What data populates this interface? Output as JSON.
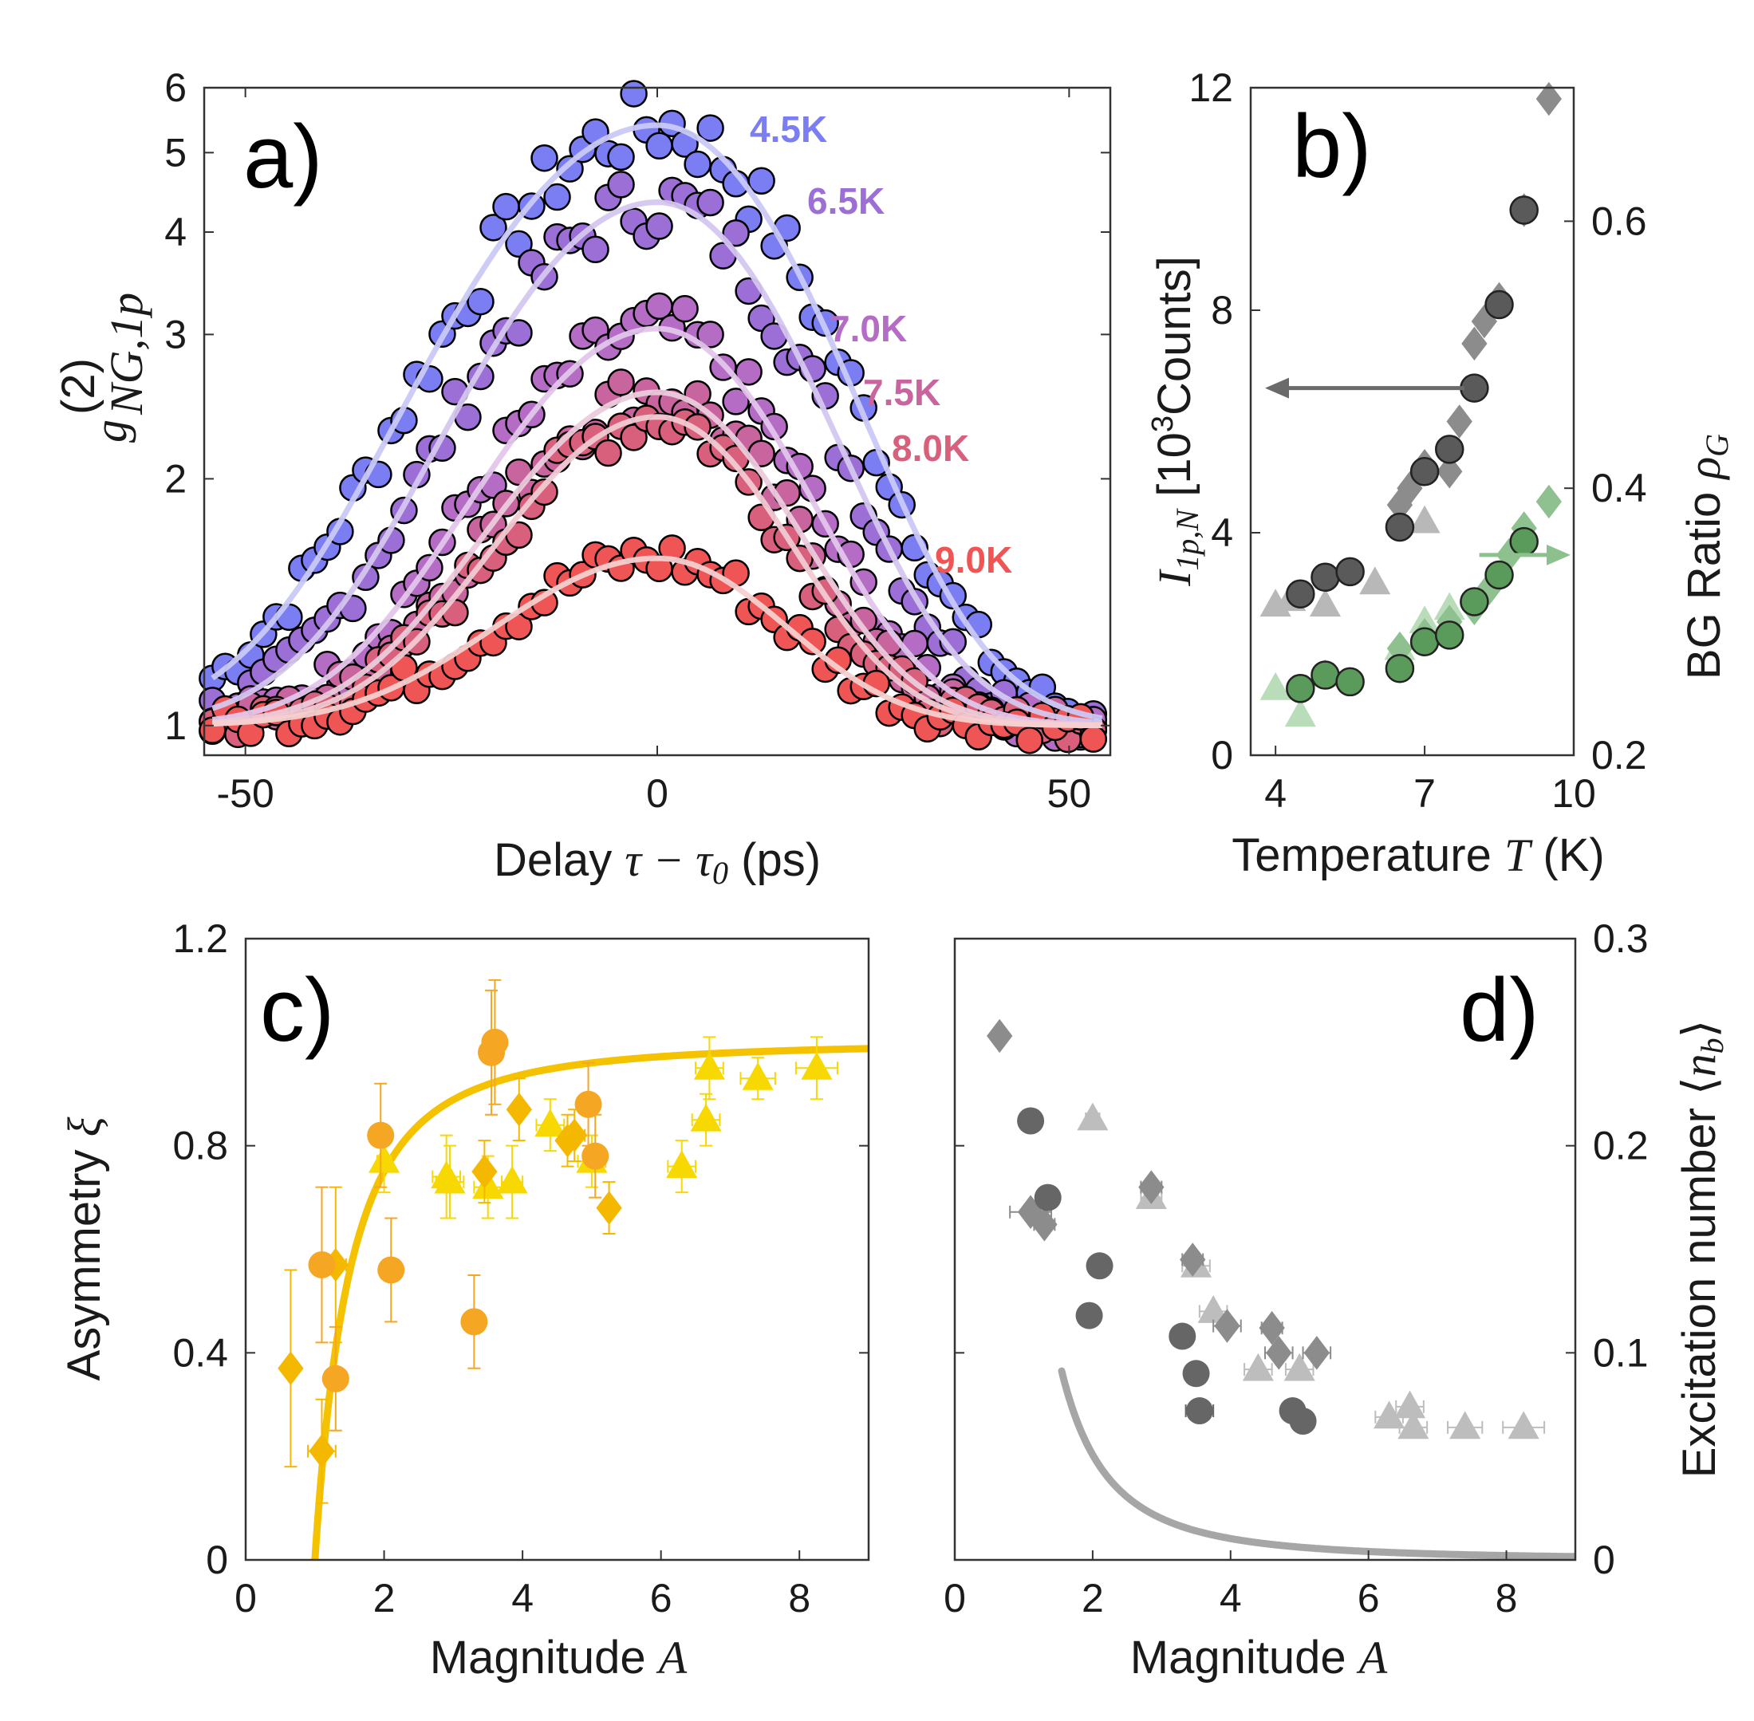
{
  "figure": {
    "panels": [
      "a)",
      "b)",
      "c)",
      "d)"
    ]
  },
  "chart_data": [
    {
      "panel": "a)",
      "type": "scatter",
      "xlabel": "Delay τ − τ0 (ps)",
      "ylabel": "g(2) NG,1p",
      "ylabel_main": "g",
      "ylabel_sup": "(2)",
      "ylabel_sub": "NG,1p",
      "xlabel_parts": [
        "Delay ",
        "τ − τ",
        "0",
        " (ps)"
      ],
      "yscale": "log",
      "xlim": [
        -55,
        55
      ],
      "ylim": [
        0.92,
        6
      ],
      "xticks": [
        -50,
        0,
        50
      ],
      "yticks": [
        1,
        2,
        3,
        4,
        5,
        6
      ],
      "fit_model": "gaussian: y = 1 + (peak - 1) * exp(-x^2 / (2 * sigma^2))",
      "series": [
        {
          "name": "4.5K",
          "color": "#7b7ef2",
          "fit_color": "#c9c9f7",
          "peak": 5.4,
          "sigma": 16.5,
          "asymmetry_left": 1.25
        },
        {
          "name": "6.5K",
          "color": "#9b6fd6",
          "fit_color": "#d4c7ef",
          "peak": 4.35,
          "sigma": 15.5,
          "asymmetry_left": 1.2
        },
        {
          "name": "7.0K",
          "color": "#b46cc4",
          "fit_color": "#e3c6ec",
          "peak": 3.05,
          "sigma": 14.5,
          "asymmetry_left": 1.2
        },
        {
          "name": "7.5K",
          "color": "#c8649e",
          "fit_color": "#eccbdc",
          "peak": 2.55,
          "sigma": 14.0,
          "asymmetry_left": 1.2
        },
        {
          "name": "8.0K",
          "color": "#d8607c",
          "fit_color": "#f1cad3",
          "peak": 2.38,
          "sigma": 13.5,
          "asymmetry_left": 1.2
        },
        {
          "name": "9.0K",
          "color": "#ef5555",
          "fit_color": "#f6d0d0",
          "peak": 1.6,
          "sigma": 14.0,
          "asymmetry_left": 1.25
        }
      ]
    },
    {
      "panel": "b)",
      "type": "scatter",
      "xlabel": "Temperature T (K)",
      "xlabel_parts": [
        "Temperature ",
        "T",
        " (K)"
      ],
      "ylabel_left": "I1p,N [10^3 Counts]",
      "ylabel_left_parts": [
        "I",
        "1p,N",
        " [10",
        "3",
        "Counts]"
      ],
      "ylabel_right": "BG Ratio ρG",
      "ylabel_right_parts": [
        "BG Ratio ",
        "ρ",
        "G"
      ],
      "xlim": [
        3.5,
        10
      ],
      "ylim_left": [
        0,
        12
      ],
      "ylim_right": [
        0.2,
        0.7
      ],
      "xticks": [
        4,
        7,
        10
      ],
      "yticks_left": [
        0,
        4,
        8,
        12
      ],
      "yticks_right": [
        0.2,
        0.4,
        0.6
      ],
      "series": [
        {
          "name": "counts circles",
          "axis": "left",
          "marker": "circle",
          "color": "#5a5a5a",
          "x": [
            4.5,
            5.0,
            5.5,
            6.5,
            7.0,
            7.5,
            8.0,
            8.5,
            9.0
          ],
          "y": [
            2.9,
            3.2,
            3.3,
            4.1,
            5.1,
            5.5,
            6.6,
            8.1,
            9.8
          ]
        },
        {
          "name": "counts diamonds",
          "axis": "left",
          "marker": "diamond",
          "color": "#8c8c8c",
          "x": [
            6.5,
            6.7,
            7.0,
            7.5,
            7.7,
            8.0,
            8.2,
            8.5,
            9.0,
            9.5
          ],
          "y": [
            4.5,
            4.8,
            5.2,
            5.1,
            6.0,
            7.4,
            7.8,
            8.2,
            9.8,
            11.8
          ]
        },
        {
          "name": "counts triangles",
          "axis": "left",
          "marker": "triangle",
          "color": "#b8b8b8",
          "x": [
            4.0,
            4.3,
            5.0,
            6.0,
            7.0
          ],
          "y": [
            2.7,
            2.8,
            2.7,
            3.1,
            4.2
          ]
        },
        {
          "name": "ratio circles",
          "axis": "right",
          "marker": "circle",
          "color": "#5a9a5a",
          "x": [
            4.5,
            5.0,
            5.5,
            6.5,
            7.0,
            7.5,
            8.0,
            8.5,
            9.0
          ],
          "y": [
            0.25,
            0.26,
            0.255,
            0.265,
            0.285,
            0.29,
            0.315,
            0.335,
            0.36
          ]
        },
        {
          "name": "ratio diamonds",
          "axis": "right",
          "marker": "diamond",
          "color": "#8fc08f",
          "x": [
            6.5,
            7.0,
            7.5,
            8.0,
            8.3,
            8.7,
            9.0,
            9.5
          ],
          "y": [
            0.28,
            0.29,
            0.3,
            0.31,
            0.325,
            0.35,
            0.37,
            0.39
          ]
        },
        {
          "name": "ratio triangles",
          "axis": "right",
          "marker": "triangle",
          "color": "#b9dcb9",
          "x": [
            4.0,
            4.5,
            5.0,
            6.5,
            7.0,
            7.5
          ],
          "y": [
            0.25,
            0.23,
            0.26,
            0.28,
            0.3,
            0.31
          ]
        }
      ],
      "arrows": [
        {
          "axis": "left",
          "direction": "left",
          "color": "#6a6a6a",
          "from_x": 7.8,
          "to_x": 3.5,
          "y": 6.6
        },
        {
          "axis": "right",
          "direction": "right",
          "color": "#8cc08c",
          "from_x": 8.1,
          "to_x": 10.0,
          "y": 0.35
        }
      ]
    },
    {
      "panel": "c)",
      "type": "scatter",
      "xlabel": "Magnitude A",
      "xlabel_parts": [
        "Magnitude ",
        "A"
      ],
      "ylabel": "Asymmetry ξ",
      "ylabel_parts": [
        "Asymmetry ",
        "ξ"
      ],
      "xlim": [
        0,
        9
      ],
      "ylim": [
        0,
        1.2
      ],
      "xticks": [
        0,
        2,
        4,
        6,
        8
      ],
      "yticks": [
        0,
        0.4,
        0.8,
        1.2
      ],
      "fit": {
        "color": "#f5c200",
        "model": "y = 1 - 1/A^2",
        "x_start": 1.0
      },
      "series": [
        {
          "name": "circles",
          "marker": "circle",
          "color": "#f5a623",
          "x": [
            1.1,
            1.3,
            1.95,
            2.1,
            3.3,
            3.55,
            3.6,
            4.95,
            5.05
          ],
          "y": [
            0.57,
            0.35,
            0.82,
            0.56,
            0.46,
            0.98,
            1.0,
            0.88,
            0.78
          ],
          "yerr": [
            0.15,
            0.1,
            0.1,
            0.1,
            0.09,
            0.12,
            0.12,
            0.08,
            0.08
          ],
          "xerr": [
            0.1,
            0.15,
            0.05,
            0.05,
            0.15,
            0.05,
            0.1,
            0.1,
            0.1
          ]
        },
        {
          "name": "diamonds",
          "marker": "diamond",
          "color": "#f5b800",
          "x": [
            0.65,
            1.1,
            1.3,
            3.45,
            3.95,
            4.65,
            4.75,
            5.25
          ],
          "y": [
            0.37,
            0.21,
            0.57,
            0.75,
            0.87,
            0.81,
            0.82,
            0.68
          ],
          "yerr": [
            0.19,
            0.1,
            0.15,
            0.06,
            0.06,
            0.05,
            0.05,
            0.05
          ],
          "xerr": [
            0.1,
            0.2,
            0.15,
            0.1,
            0.1,
            0.1,
            0.15,
            0.1
          ]
        },
        {
          "name": "triangles",
          "marker": "triangle",
          "color": "#f7d800",
          "x": [
            2.0,
            2.9,
            2.95,
            3.5,
            3.85,
            4.4,
            5.0,
            6.3,
            6.65,
            6.7,
            7.4,
            8.25
          ],
          "y": [
            0.77,
            0.74,
            0.73,
            0.72,
            0.73,
            0.84,
            0.77,
            0.76,
            0.85,
            0.95,
            0.93,
            0.95
          ],
          "yerr": [
            0.06,
            0.08,
            0.07,
            0.06,
            0.07,
            0.05,
            0.05,
            0.05,
            0.05,
            0.06,
            0.04,
            0.06
          ],
          "xerr": [
            0.1,
            0.2,
            0.2,
            0.2,
            0.15,
            0.2,
            0.2,
            0.2,
            0.2,
            0.2,
            0.25,
            0.3
          ]
        }
      ]
    },
    {
      "panel": "d)",
      "type": "scatter",
      "xlabel": "Magnitude A",
      "xlabel_parts": [
        "Magnitude ",
        "A"
      ],
      "ylabel": "Excitation number ⟨nb⟩",
      "ylabel_parts": [
        "Excitation number ⟨",
        "n",
        "b",
        "⟩"
      ],
      "xlim": [
        0,
        9
      ],
      "ylim": [
        0,
        0.3
      ],
      "xticks": [
        0,
        2,
        4,
        6,
        8
      ],
      "yticks": [
        0,
        0.1,
        0.2,
        0.3
      ],
      "fit": {
        "color": "#a6a6a6",
        "model": "y = 0.25 / A^2.3",
        "x_start": 1.55
      },
      "series": [
        {
          "name": "circles",
          "marker": "circle",
          "color": "#666666",
          "x": [
            1.1,
            1.35,
            1.95,
            2.1,
            3.3,
            3.5,
            3.55,
            4.9,
            5.05
          ],
          "y": [
            0.212,
            0.175,
            0.118,
            0.142,
            0.108,
            0.09,
            0.072,
            0.072,
            0.067
          ],
          "xerr": [
            0.05,
            0.05,
            0.05,
            0.05,
            0.1,
            0.1,
            0.2,
            0.1,
            0.1
          ]
        },
        {
          "name": "diamonds",
          "marker": "diamond",
          "color": "#8c8c8c",
          "x": [
            0.65,
            1.1,
            1.3,
            2.85,
            3.45,
            3.95,
            4.6,
            4.7,
            5.25
          ],
          "y": [
            0.253,
            0.168,
            0.162,
            0.18,
            0.145,
            0.113,
            0.112,
            0.1,
            0.1
          ],
          "xerr": [
            0.05,
            0.3,
            0.15,
            0.15,
            0.15,
            0.2,
            0.15,
            0.2,
            0.2
          ]
        },
        {
          "name": "triangles",
          "marker": "triangle",
          "color": "#bdbdbd",
          "x": [
            2.0,
            2.85,
            3.5,
            3.75,
            4.4,
            5.0,
            6.3,
            6.6,
            6.65,
            7.4,
            8.25
          ],
          "y": [
            0.213,
            0.175,
            0.142,
            0.12,
            0.092,
            0.092,
            0.069,
            0.074,
            0.064,
            0.064,
            0.064
          ],
          "xerr": [
            0.1,
            0.15,
            0.2,
            0.2,
            0.2,
            0.2,
            0.2,
            0.2,
            0.2,
            0.25,
            0.3
          ]
        }
      ]
    }
  ]
}
